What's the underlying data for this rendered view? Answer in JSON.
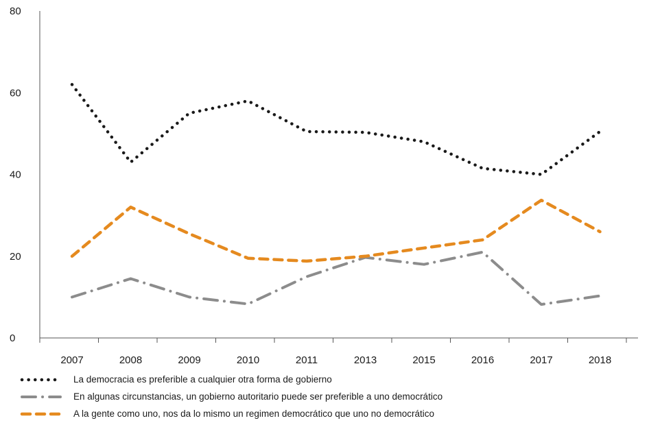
{
  "chart_data": {
    "type": "line",
    "title": "",
    "xlabel": "",
    "ylabel": "",
    "categories": [
      "2007",
      "2008",
      "2009",
      "2010",
      "2011",
      "2013",
      "2015",
      "2016",
      "2017",
      "2018"
    ],
    "ylim": [
      0,
      80
    ],
    "yticks": [
      0,
      20,
      40,
      60,
      80
    ],
    "grid": false,
    "series": [
      {
        "name": "La democracia es preferible a cualquier otra forma de gobierno",
        "values": [
          62,
          43,
          55,
          58,
          50.5,
          50.3,
          48,
          41.5,
          40,
          50.5
        ],
        "color": "#1a1a1a",
        "style": "dotted"
      },
      {
        "name": "En algunas circunstancias, un gobierno autoritario puede ser preferible a uno democrático",
        "values": [
          10,
          14.5,
          10,
          8.3,
          15,
          19.7,
          18,
          21,
          8.2,
          10.3
        ],
        "color": "#8c8c8c",
        "style": "dash-dot"
      },
      {
        "name": "A la gente como uno, nos da lo mismo un regimen democrático que uno no democrático",
        "values": [
          20,
          32,
          25.5,
          19.5,
          18.8,
          20,
          22,
          24,
          33.7,
          26
        ],
        "color": "#e58a1f",
        "style": "dashed"
      }
    ]
  }
}
